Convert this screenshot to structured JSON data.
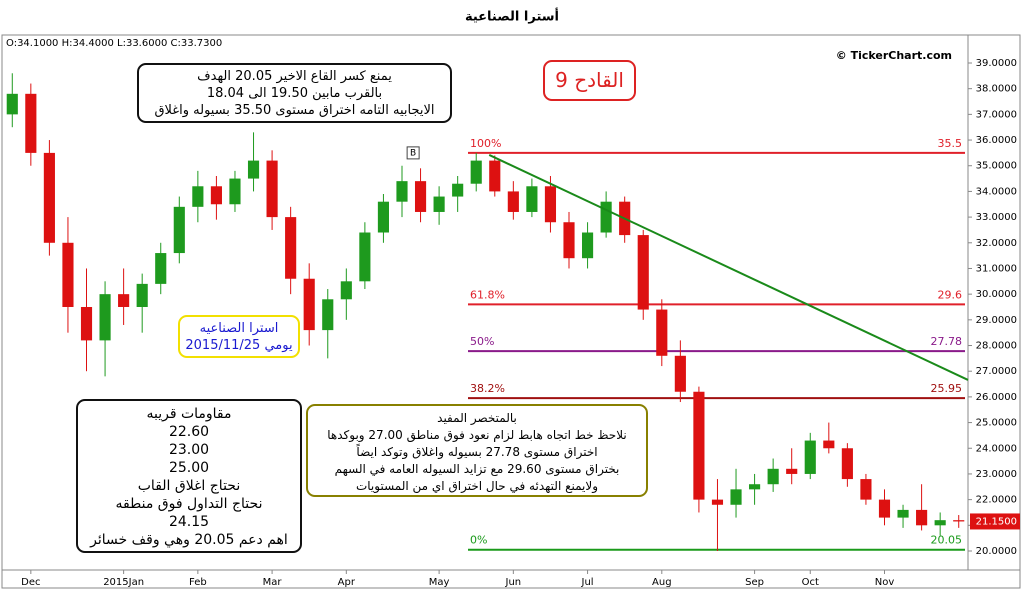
{
  "header": {
    "title": "أسترا الصناعية",
    "ohlc": "O:34.1000  H:34.4000  L:33.6000  C:33.7300",
    "copyright": "© TickerChart.com"
  },
  "chart_data": {
    "type": "candlestick",
    "categories": [
      null,
      "Dec",
      null,
      null,
      null,
      null,
      "2015Jan",
      null,
      null,
      null,
      "Feb",
      null,
      null,
      null,
      "Mar",
      null,
      null,
      null,
      "Apr",
      null,
      null,
      null,
      null,
      "May",
      null,
      null,
      null,
      "Jun",
      null,
      null,
      null,
      "Jul",
      null,
      null,
      null,
      "Aug",
      null,
      null,
      null,
      null,
      "Sep",
      null,
      null,
      "Oct",
      null,
      null,
      null,
      "Nov",
      null,
      null,
      null,
      null
    ],
    "open": [
      37.0,
      37.8,
      35.5,
      32.0,
      29.5,
      28.2,
      30.0,
      29.5,
      30.4,
      31.6,
      33.4,
      34.2,
      33.5,
      34.5,
      35.2,
      33.0,
      30.6,
      28.6,
      29.8,
      30.5,
      32.4,
      33.6,
      34.4,
      33.2,
      33.8,
      34.3,
      35.2,
      34.0,
      33.2,
      34.2,
      32.8,
      31.4,
      32.4,
      33.6,
      32.3,
      29.4,
      27.6,
      26.2,
      22.0,
      21.8,
      22.4,
      22.6,
      23.2,
      23.0,
      24.3,
      24.0,
      22.8,
      22.0,
      21.3,
      21.6,
      21.0,
      21.2
    ],
    "high": [
      38.6,
      38.2,
      36.0,
      33.0,
      31.0,
      30.5,
      31.0,
      30.8,
      32.0,
      33.8,
      34.8,
      34.6,
      34.8,
      36.3,
      35.6,
      33.4,
      31.2,
      30.2,
      31.0,
      32.8,
      33.9,
      35.0,
      34.9,
      34.2,
      34.6,
      35.5,
      35.4,
      34.4,
      34.5,
      34.6,
      33.2,
      32.8,
      34.0,
      33.8,
      32.5,
      29.8,
      28.2,
      26.4,
      22.8,
      23.2,
      23.0,
      23.6,
      24.0,
      24.6,
      25.0,
      24.2,
      23.0,
      22.4,
      21.8,
      22.6,
      21.5,
      21.4
    ],
    "low": [
      36.5,
      35.0,
      31.5,
      28.5,
      27.0,
      26.8,
      28.8,
      28.5,
      30.0,
      31.2,
      32.8,
      32.9,
      33.2,
      34.0,
      32.5,
      30.0,
      28.0,
      27.5,
      29.0,
      30.2,
      32.0,
      33.0,
      32.8,
      32.7,
      33.2,
      34.0,
      33.8,
      32.9,
      33.0,
      32.4,
      31.0,
      31.0,
      32.2,
      32.0,
      29.0,
      27.2,
      25.8,
      21.5,
      20.0,
      21.3,
      21.8,
      22.3,
      22.6,
      22.8,
      23.8,
      22.5,
      21.8,
      21.0,
      20.9,
      20.8,
      20.6,
      20.9
    ],
    "close": [
      37.8,
      35.5,
      32.0,
      29.5,
      28.2,
      30.0,
      29.5,
      30.4,
      31.6,
      33.4,
      34.2,
      33.5,
      34.5,
      35.2,
      33.0,
      30.6,
      28.6,
      29.8,
      30.5,
      32.4,
      33.6,
      34.4,
      33.2,
      33.8,
      34.3,
      35.2,
      34.0,
      33.2,
      34.2,
      32.8,
      31.4,
      32.4,
      33.6,
      32.3,
      29.4,
      27.6,
      26.2,
      22.0,
      21.8,
      22.4,
      22.6,
      23.2,
      23.0,
      24.3,
      24.0,
      22.8,
      22.0,
      21.3,
      21.6,
      21.0,
      21.2,
      21.15
    ],
    "up_color": "#1e9a1e",
    "down_color": "#dd1111",
    "ylim": [
      19.26,
      40.09
    ],
    "yticks": [
      {
        "value": 20,
        "label": "20.0000"
      },
      {
        "value": 21,
        "label": "21.0000"
      },
      {
        "value": 22,
        "label": "22.0000"
      },
      {
        "value": 23,
        "label": "23.0000"
      },
      {
        "value": 24,
        "label": "24.0000"
      },
      {
        "value": 25,
        "label": "25.0000"
      },
      {
        "value": 26,
        "label": "26.0000"
      },
      {
        "value": 27,
        "label": "27.0000"
      },
      {
        "value": 28,
        "label": "28.0000"
      },
      {
        "value": 29,
        "label": "29.0000"
      },
      {
        "value": 30,
        "label": "30.0000"
      },
      {
        "value": 31,
        "label": "31.0000"
      },
      {
        "value": 32,
        "label": "32.0000"
      },
      {
        "value": 33,
        "label": "33.0000"
      },
      {
        "value": 34,
        "label": "34.0000"
      },
      {
        "value": 35,
        "label": "35.0000"
      },
      {
        "value": 36,
        "label": "36.0000"
      },
      {
        "value": 37,
        "label": "37.0000"
      },
      {
        "value": 38,
        "label": "38.0000"
      },
      {
        "value": 39,
        "label": "39.0000"
      }
    ],
    "last_price": {
      "value": 21.15,
      "label": "21.1500"
    },
    "fib_levels": [
      {
        "level": "100%",
        "value": 35.5,
        "color": "#e0202a"
      },
      {
        "level": "61.8%",
        "value": 29.6,
        "color": "#e0202a"
      },
      {
        "level": "50%",
        "value": 27.78,
        "color": "#8a1a8a"
      },
      {
        "level": "38.2%",
        "value": 25.95,
        "color": "#a01010"
      },
      {
        "level": "0%",
        "value": 20.05,
        "color": "#1a9a1a"
      }
    ],
    "trendline": {
      "x": [
        25.7,
        51.5
      ],
      "y": [
        35.42,
        26.66
      ],
      "color": "#1a8a1a"
    },
    "marker": {
      "text": "B",
      "x": 21.6,
      "y": 35.5
    }
  },
  "notes": {
    "target": [
      "يمنع كسر القاع الاخير 20.05 الهدف",
      "بالقرب مابين 19.50 الى 18.04",
      "الايجابيه التامه اختراق مستوى 35.50 بسيوله واغلاق"
    ],
    "signal": "القادح 9",
    "stock": [
      "استرا الصناعيه",
      "يومي  2015/11/25"
    ],
    "levels": [
      "مقاومات قريبه",
      "22.60",
      "23.00",
      "25.00",
      "نحتاج اغلاق القاب",
      "نحتاج التداول فوق منطقه",
      "24.15",
      "اهم دعم 20.05 وهي وقف خسائر"
    ],
    "summary": [
      "بالمتخصر المفيد",
      "نلاحظ خط اتجاه هابط لزام نعود فوق مناطق 27.00 وبوكدها",
      "اختراق  مستوى 27.78 بسيوله واغلاق وتوكد ايضاً",
      "بختراق  مستوى 29.60 مع تزايد السيوله العامه في السهم",
      "ولايمنع التهدئه في حال اختراق اي من المستويات"
    ]
  }
}
